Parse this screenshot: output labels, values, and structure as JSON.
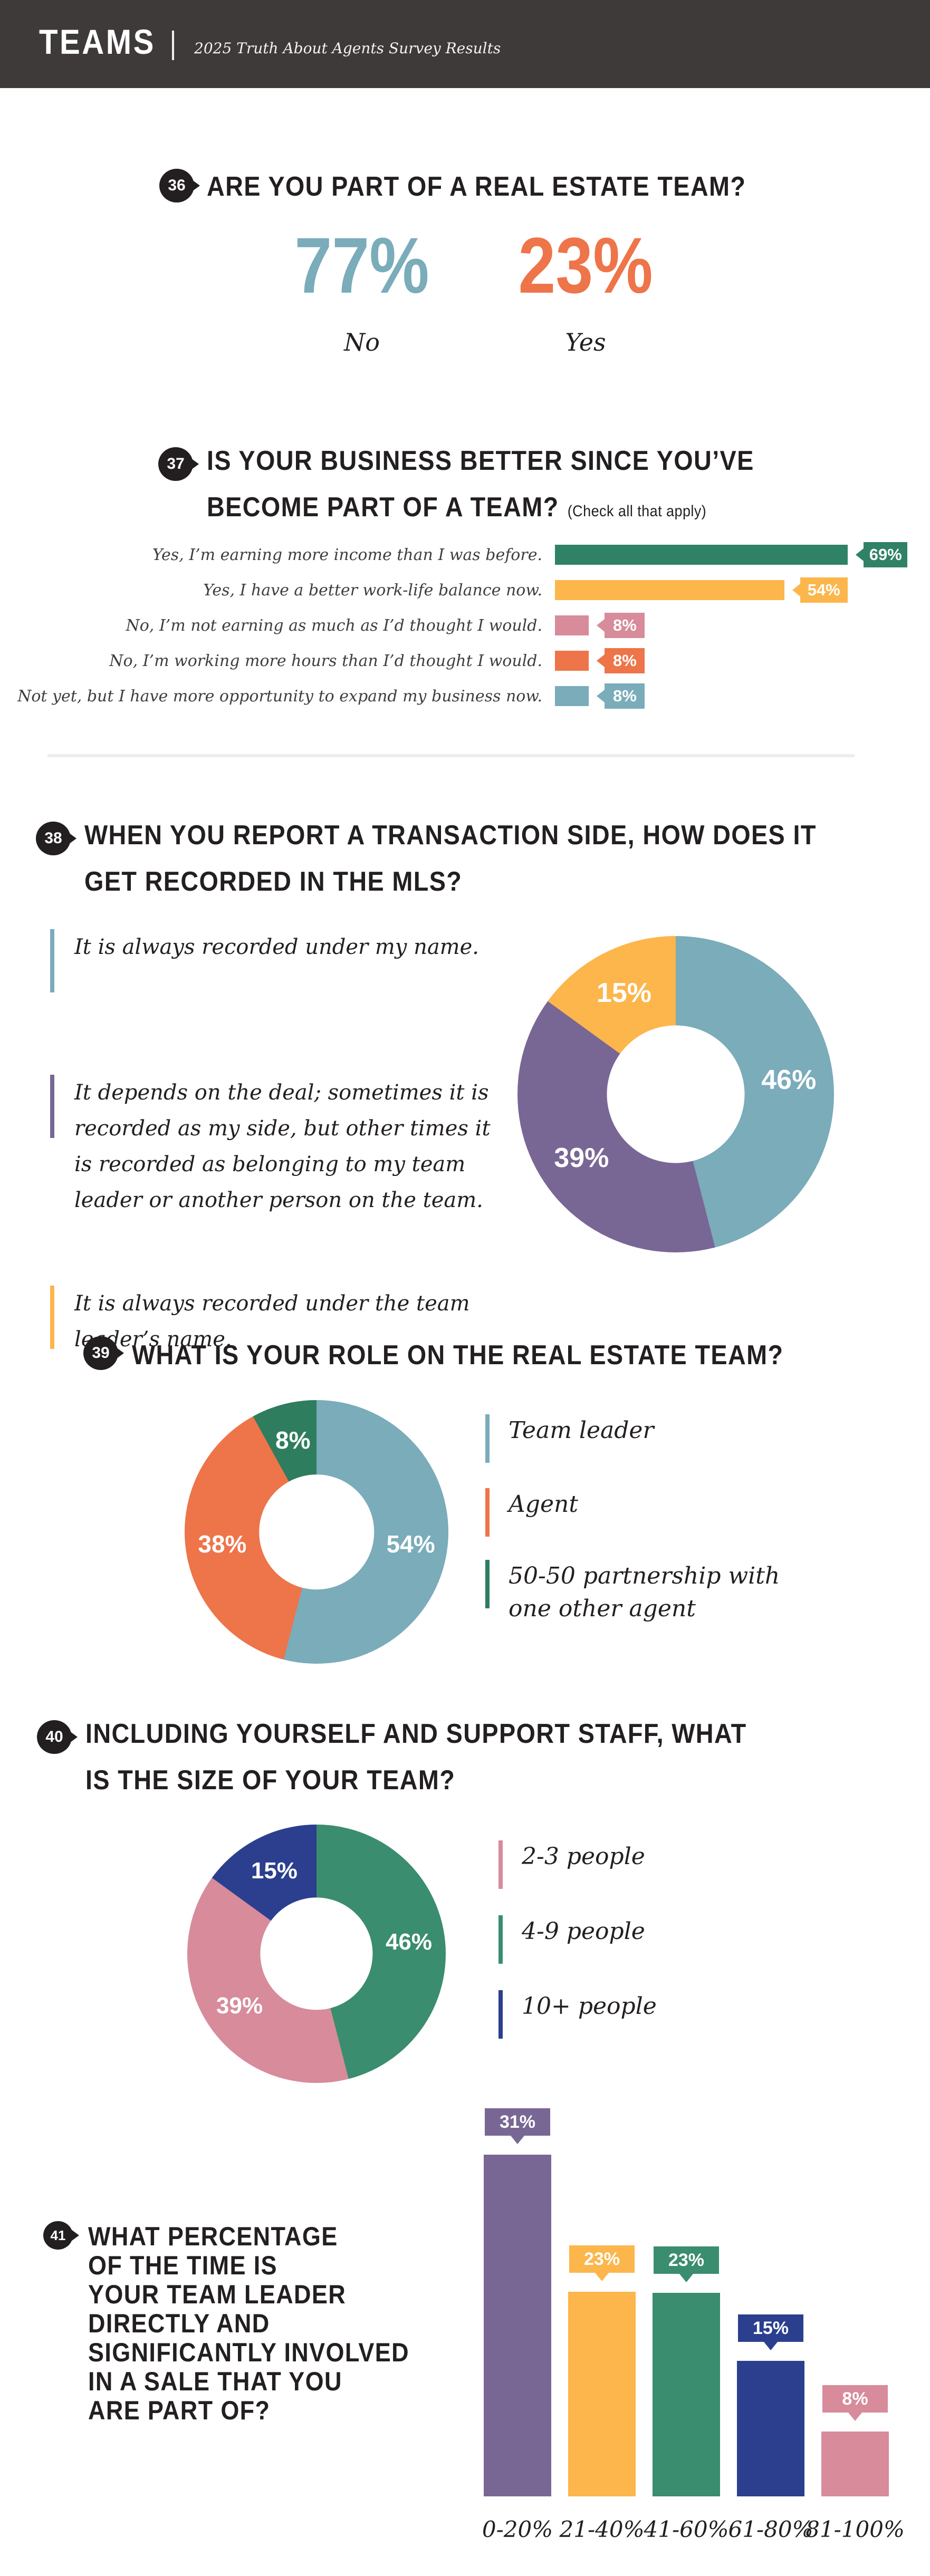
{
  "header": {
    "brand": "TEAMS",
    "subtitle": "2025 Truth About Agents Survey Results"
  },
  "q36": {
    "number": "36",
    "title": "ARE YOU PART OF A REAL ESTATE TEAM?"
  },
  "q37": {
    "number": "37",
    "title_line1": "IS YOUR BUSINESS BETTER SINCE YOU’VE",
    "title_line2": "BECOME PART OF A TEAM?",
    "note": "(Check all that apply)"
  },
  "q38": {
    "number": "38",
    "title_line1": "WHEN YOU REPORT A TRANSACTION SIDE, HOW DOES IT",
    "title_line2": "GET RECORDED IN THE MLS?"
  },
  "q39": {
    "number": "39",
    "title": "WHAT IS YOUR ROLE ON THE REAL ESTATE TEAM?"
  },
  "q40": {
    "number": "40",
    "title_line1": "INCLUDING YOURSELF AND SUPPORT STAFF, WHAT",
    "title_line2": "IS THE SIZE OF YOUR TEAM?"
  },
  "q41": {
    "number": "41",
    "title_lines": [
      "WHAT PERCENTAGE",
      "OF THE TIME IS",
      "YOUR TEAM LEADER",
      "DIRECTLY AND",
      "SIGNIFICANTLY INVOLVED",
      "IN A SALE THAT YOU",
      "ARE PART OF?"
    ]
  },
  "chart_data": [
    {
      "id": "q36",
      "type": "table",
      "title": "Are you part of a real estate team?",
      "categories": [
        "No",
        "Yes"
      ],
      "values": [
        77,
        23
      ],
      "value_labels": [
        "77%",
        "23%"
      ],
      "colors": [
        "#7aacba",
        "#ee7449"
      ]
    },
    {
      "id": "q37",
      "type": "bar",
      "orientation": "horizontal",
      "title": "Is your business better since you’ve become part of a team? (Check all that apply)",
      "categories": [
        "Yes, I’m earning more income than I was before.",
        "Yes, I have a better work-life balance now.",
        "No, I’m not earning as much as I’d thought I would.",
        "No, I’m working more hours than I’d thought I would.",
        "Not yet, but I have more opportunity to expand my business now."
      ],
      "values": [
        69,
        54,
        8,
        8,
        8
      ],
      "value_labels": [
        "69%",
        "54%",
        "8%",
        "8%",
        "8%"
      ],
      "colors": [
        "#2f8265",
        "#fcb64b",
        "#d78b9b",
        "#ee7449",
        "#7aacba"
      ]
    },
    {
      "id": "q38",
      "type": "pie",
      "donut": true,
      "title": "When you report a transaction side, how does it get recorded in the MLS?",
      "labels": [
        "It is always recorded under my name.",
        "It depends on the deal; sometimes it is recorded as my side, but other times it is recorded as belonging to my team leader or another person on the team.",
        "It is always recorded under the team leader’s name."
      ],
      "values": [
        46,
        39,
        15
      ],
      "value_labels": [
        "46%",
        "39%",
        "15%"
      ],
      "colors": [
        "#7aacba",
        "#786795",
        "#fcb64b"
      ],
      "legend_position": "left"
    },
    {
      "id": "q39",
      "type": "pie",
      "donut": true,
      "title": "What is your role on the real estate team?",
      "labels": [
        "Team leader",
        "Agent",
        "50-50 partnership with one other agent"
      ],
      "values": [
        54,
        38,
        8
      ],
      "value_labels": [
        "54%",
        "38%",
        "8%"
      ],
      "colors": [
        "#7aacba",
        "#ee7449",
        "#2e7d5f"
      ],
      "legend_position": "right"
    },
    {
      "id": "q40",
      "type": "pie",
      "donut": true,
      "title": "Including yourself and support staff, what is the size of your team?",
      "labels": [
        "4-9 people",
        "2-3 people",
        "10+ people"
      ],
      "values": [
        46,
        39,
        15
      ],
      "value_labels": [
        "46%",
        "39%",
        "15%"
      ],
      "colors": [
        "#3a8d6e",
        "#d78b9b",
        "#2b3f8e"
      ],
      "legend_position": "right"
    },
    {
      "id": "q41",
      "type": "bar",
      "orientation": "vertical",
      "title": "What percentage of the time is your team leader directly and significantly involved in a sale that you are part of?",
      "categories": [
        "0-20%",
        "21-40%",
        "41-60%",
        "61-80%",
        "81-100%"
      ],
      "values": [
        31,
        23,
        23,
        15,
        8
      ],
      "value_labels": [
        "31%",
        "23%",
        "23%",
        "15%",
        "8%"
      ],
      "colors": [
        "#786795",
        "#fcb64b",
        "#3a8d6e",
        "#2b3f8e",
        "#d78b9b"
      ]
    }
  ]
}
